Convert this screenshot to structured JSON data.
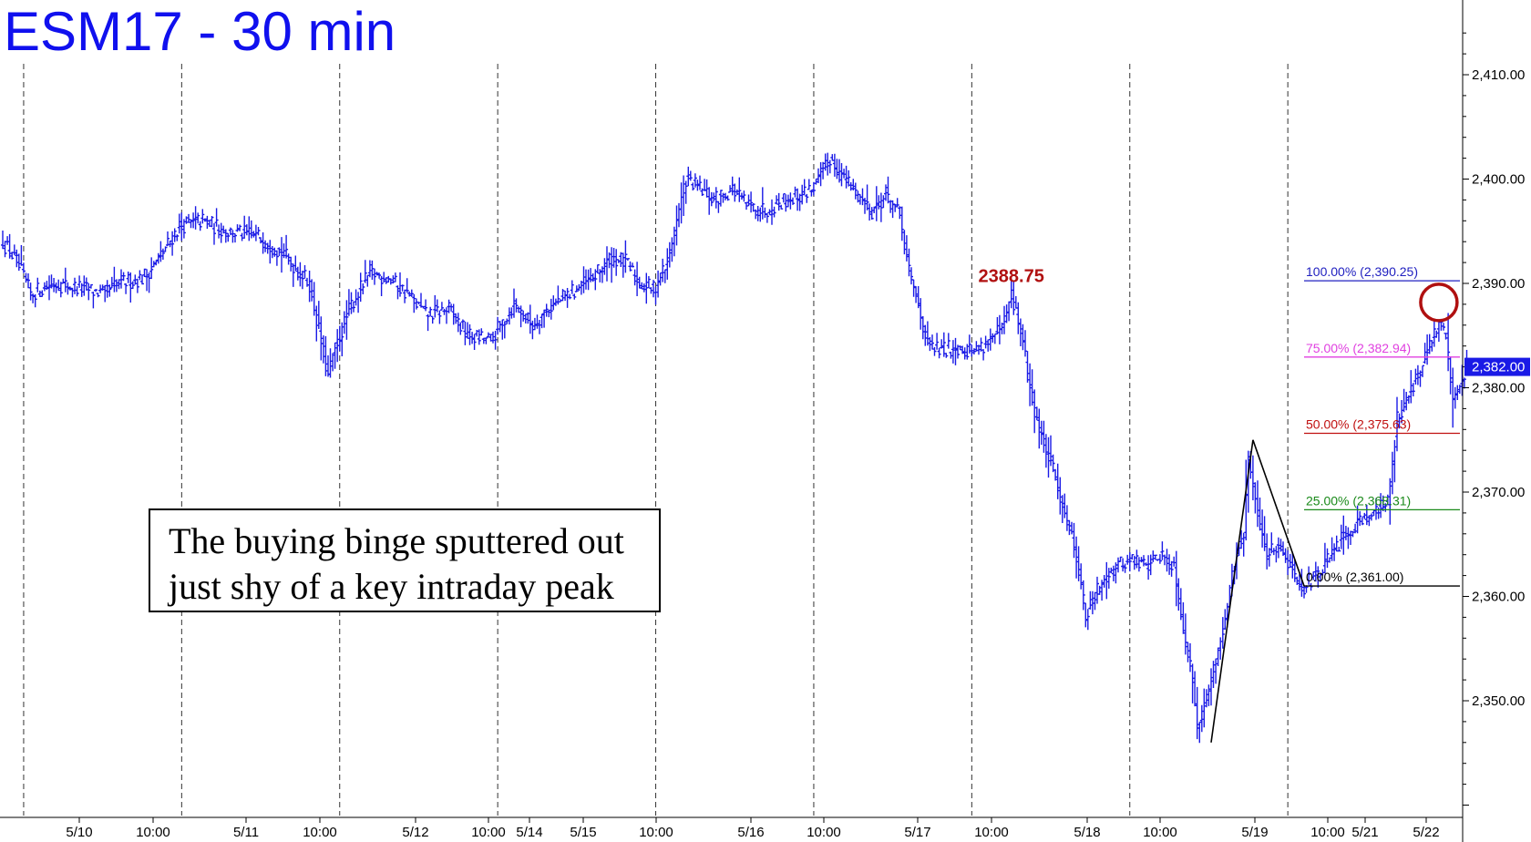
{
  "title": "ESM17 - 30 min",
  "annotation": {
    "lines": [
      "The buying binge sputtered out",
      "just shy of a key intraday peak"
    ],
    "peak_label": "2388.75"
  },
  "colors": {
    "bars": "#1a1ae6",
    "fib100": "#2020c0",
    "fib75": "#e040e0",
    "fib50": "#c01010",
    "fib25": "#1a8a1a",
    "fib0": "#000000",
    "peak": "#b01010"
  },
  "chart_data": {
    "type": "ohlc_bar",
    "title": "ESM17 - 30 min",
    "xlabel": "",
    "ylabel": "",
    "ylim": [
      2340,
      2415
    ],
    "y_ticks": [
      2350,
      2360,
      2370,
      2380,
      2390,
      2400,
      2410
    ],
    "y_tick_labels": [
      "2,350.00",
      "2,360.00",
      "2,370.00",
      "2,380.00",
      "2,390.00",
      "2,400.00",
      "2,410.00"
    ],
    "x_tick_labels": [
      "5/10",
      "10:00",
      "5/11",
      "10:00",
      "5/12",
      "10:00",
      "5/14",
      "5/15",
      "10:00",
      "5/16",
      "10:00",
      "5/17",
      "10:00",
      "5/18",
      "10:00",
      "5/19",
      "10:00",
      "5/21",
      "5/22"
    ],
    "last_price": 2382.0,
    "last_price_label": "2,382.00",
    "close_path": [
      [
        0,
        2394
      ],
      [
        6,
        2392
      ],
      [
        12,
        2389
      ],
      [
        22,
        2390
      ],
      [
        34,
        2389.5
      ],
      [
        44,
        2389
      ],
      [
        50,
        2390
      ],
      [
        60,
        2390.5
      ],
      [
        66,
        2392
      ],
      [
        76,
        2395.5
      ],
      [
        86,
        2396
      ],
      [
        96,
        2395
      ],
      [
        110,
        2394.5
      ],
      [
        120,
        2393
      ],
      [
        132,
        2390
      ],
      [
        140,
        2381
      ],
      [
        142,
        2383
      ],
      [
        150,
        2388
      ],
      [
        158,
        2391
      ],
      [
        166,
        2390.5
      ],
      [
        174,
        2389
      ],
      [
        182,
        2387
      ],
      [
        192,
        2387.5
      ],
      [
        200,
        2385
      ],
      [
        210,
        2384.5
      ],
      [
        220,
        2388
      ],
      [
        228,
        2386
      ],
      [
        234,
        2387.5
      ],
      [
        244,
        2389
      ],
      [
        254,
        2390.5
      ],
      [
        262,
        2392.5
      ],
      [
        268,
        2392
      ],
      [
        274,
        2390
      ],
      [
        280,
        2389.5
      ],
      [
        286,
        2392
      ],
      [
        294,
        2400
      ],
      [
        300,
        2399
      ],
      [
        306,
        2398
      ],
      [
        314,
        2399
      ],
      [
        320,
        2397.5
      ],
      [
        328,
        2397
      ],
      [
        336,
        2398
      ],
      [
        344,
        2398.5
      ],
      [
        350,
        2399.5
      ],
      [
        356,
        2402
      ],
      [
        362,
        2400
      ],
      [
        368,
        2398.5
      ],
      [
        374,
        2397
      ],
      [
        380,
        2398.5
      ],
      [
        386,
        2396.5
      ],
      [
        390,
        2391
      ],
      [
        394,
        2388
      ],
      [
        398,
        2384
      ],
      [
        404,
        2383.5
      ],
      [
        410,
        2384
      ],
      [
        418,
        2383.5
      ],
      [
        424,
        2384.5
      ],
      [
        430,
        2385.5
      ],
      [
        434,
        2388.75
      ],
      [
        438,
        2385.5
      ],
      [
        442,
        2380
      ],
      [
        446,
        2376
      ],
      [
        452,
        2372
      ],
      [
        456,
        2369
      ],
      [
        462,
        2364
      ],
      [
        466,
        2358
      ],
      [
        470,
        2360
      ],
      [
        474,
        2362
      ],
      [
        480,
        2363
      ],
      [
        486,
        2363.5
      ],
      [
        492,
        2363
      ],
      [
        498,
        2364
      ],
      [
        504,
        2363
      ],
      [
        508,
        2357
      ],
      [
        512,
        2352
      ],
      [
        514,
        2348
      ],
      [
        518,
        2350
      ],
      [
        522,
        2354
      ],
      [
        526,
        2358
      ],
      [
        530,
        2363
      ],
      [
        534,
        2366
      ],
      [
        536,
        2373
      ],
      [
        540,
        2368
      ],
      [
        544,
        2364
      ],
      [
        548,
        2365
      ],
      [
        552,
        2364
      ],
      [
        556,
        2362
      ],
      [
        560,
        2361
      ],
      [
        566,
        2362
      ],
      [
        572,
        2364
      ],
      [
        578,
        2366
      ],
      [
        584,
        2367.5
      ],
      [
        590,
        2368
      ],
      [
        596,
        2369
      ],
      [
        600,
        2377
      ],
      [
        606,
        2380
      ],
      [
        610,
        2381.5
      ],
      [
        614,
        2384
      ],
      [
        618,
        2386
      ],
      [
        621,
        2385
      ],
      [
        624,
        2379
      ],
      [
        628,
        2381
      ],
      [
        630,
        2382
      ]
    ],
    "session_dividers": [
      9,
      77,
      145,
      213,
      281,
      349,
      417,
      485,
      553
    ],
    "fibonacci": [
      {
        "level": "100.00%",
        "price": 2390.25,
        "label": "100.00% (2,390.25)",
        "color": "#2020c0"
      },
      {
        "level": "75.00%",
        "price": 2382.94,
        "label": "75.00% (2,382.94)",
        "color": "#e040e0"
      },
      {
        "level": "50.00%",
        "price": 2375.63,
        "label": "50.00% (2,375.63)",
        "color": "#c01010"
      },
      {
        "level": "25.00%",
        "price": 2368.31,
        "label": "25.00% (2,368.31)",
        "color": "#1a8a1a"
      },
      {
        "level": "0.00%",
        "price": 2361.0,
        "label": "0.00% (2,361.00)",
        "color": "#000000"
      }
    ],
    "pattern_points": [
      [
        520,
        2346
      ],
      [
        538,
        2375
      ],
      [
        560,
        2361
      ]
    ],
    "peak": {
      "x": 434,
      "price": 2388.75,
      "label": "2388.75"
    },
    "highlight_circle": {
      "x": 618,
      "price": 2388
    }
  }
}
